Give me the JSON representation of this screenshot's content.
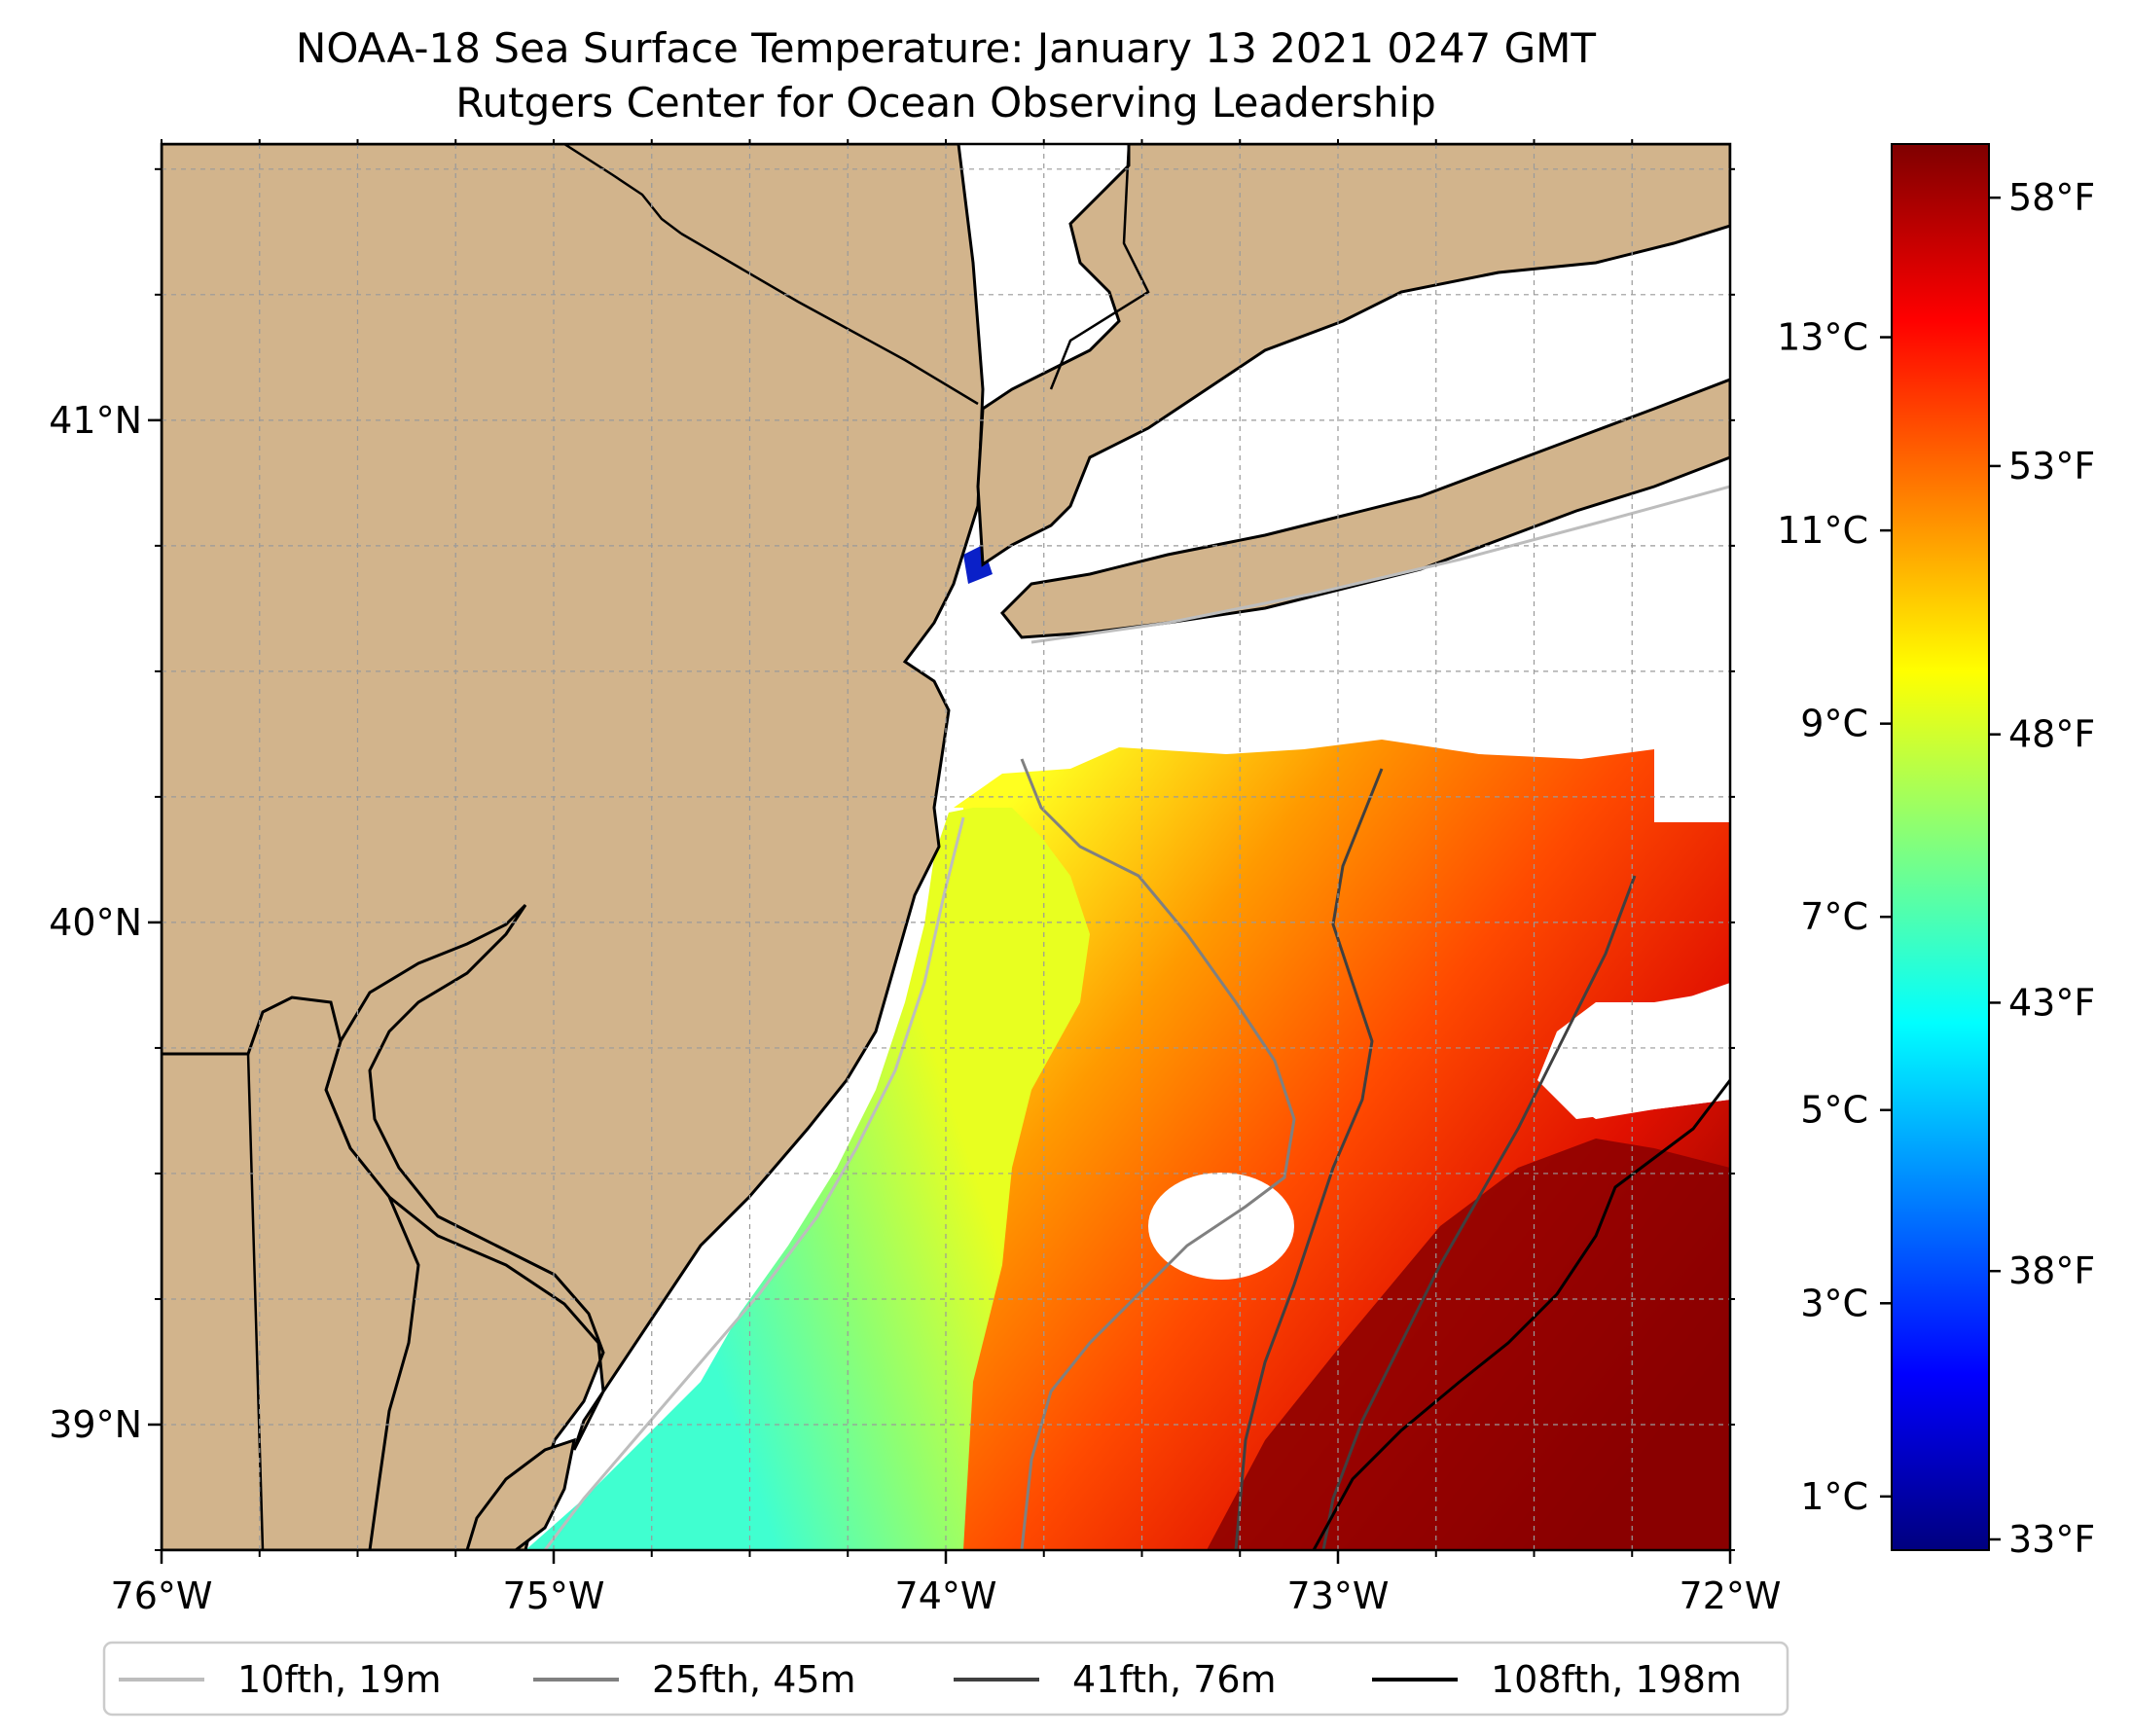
{
  "title": {
    "line1": "NOAA-18 Sea Surface Temperature: January 13 2021 0247 GMT",
    "line2": "Rutgers Center for Ocean Observing Leadership"
  },
  "chart_data": {
    "type": "heatmap",
    "map_extent": {
      "lon": [
        -76.0,
        -72.0
      ],
      "lat": [
        38.75,
        41.55
      ]
    },
    "lon_ticks": [
      {
        "value": -76,
        "label": "76°W"
      },
      {
        "value": -75,
        "label": "75°W"
      },
      {
        "value": -74,
        "label": "74°W"
      },
      {
        "value": -73,
        "label": "73°W"
      },
      {
        "value": -72,
        "label": "72°W"
      }
    ],
    "lat_ticks": [
      {
        "value": 39,
        "label": "39°N"
      },
      {
        "value": 40,
        "label": "40°N"
      },
      {
        "value": 41,
        "label": "41°N"
      }
    ],
    "grid": true,
    "colorbar": {
      "range_f": [
        32.8,
        59.0
      ],
      "colormap": "jet",
      "colormap_stops": [
        "#00007f",
        "#0000ff",
        "#007fff",
        "#00ffff",
        "#7fff7f",
        "#ffff00",
        "#ff7f00",
        "#ff0000",
        "#7f0000"
      ],
      "fahrenheit_ticks": [
        {
          "value": 33,
          "label": "33°F"
        },
        {
          "value": 38,
          "label": "38°F"
        },
        {
          "value": 43,
          "label": "43°F"
        },
        {
          "value": 48,
          "label": "48°F"
        },
        {
          "value": 53,
          "label": "53°F"
        },
        {
          "value": 58,
          "label": "58°F"
        }
      ],
      "celsius_ticks": [
        {
          "value": 1,
          "label": "1°C"
        },
        {
          "value": 3,
          "label": "3°C"
        },
        {
          "value": 5,
          "label": "5°C"
        },
        {
          "value": 7,
          "label": "7°C"
        },
        {
          "value": 9,
          "label": "9°C"
        },
        {
          "value": 11,
          "label": "11°C"
        },
        {
          "value": 13,
          "label": "13°C"
        }
      ]
    },
    "legend": {
      "placement": "bottom",
      "entries": [
        {
          "label": "10fth, 19m",
          "color": "#bdbdbd"
        },
        {
          "label": "25fth, 45m",
          "color": "#808080"
        },
        {
          "label": "41fth, 76m",
          "color": "#404040"
        },
        {
          "label": "108fth, 198m",
          "color": "#000000"
        }
      ]
    },
    "colors": {
      "land": "#d2b48c",
      "no_data": "#ffffff"
    }
  }
}
